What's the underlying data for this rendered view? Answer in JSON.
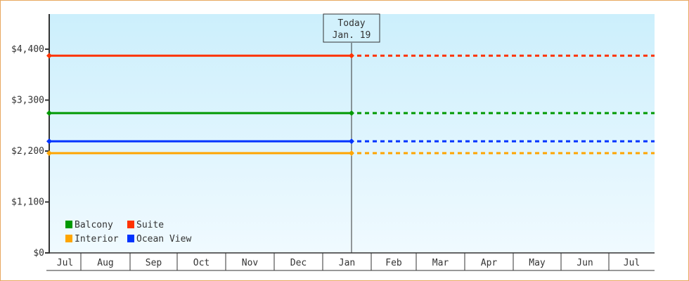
{
  "chart_data": {
    "type": "line",
    "title": "",
    "xlabel": "",
    "ylabel": "",
    "ylim": [
      0,
      4400
    ],
    "y_ticks": [
      "$0",
      "$1,100",
      "$2,200",
      "$3,300",
      "$4,400"
    ],
    "y_tick_values": [
      0,
      1100,
      2200,
      3300,
      4400
    ],
    "x_ticks": [
      "Jul",
      "Aug",
      "Sep",
      "Oct",
      "Nov",
      "Dec",
      "Jan",
      "Feb",
      "Mar",
      "Apr",
      "May",
      "Jun",
      "Jul"
    ],
    "today_marker": {
      "line1": "Today",
      "line2": "Jan. 19"
    },
    "x": [
      "Jul",
      "Jan. 19"
    ],
    "projection": "dashed from Today to end of axis",
    "series": [
      {
        "name": "Suite",
        "color": "#ff3300",
        "values": [
          4260,
          4260
        ]
      },
      {
        "name": "Balcony",
        "color": "#009900",
        "values": [
          3020,
          3020
        ]
      },
      {
        "name": "Ocean View",
        "color": "#0033ff",
        "values": [
          2410,
          2410
        ]
      },
      {
        "name": "Interior",
        "color": "#ffa500",
        "values": [
          2155,
          2155
        ]
      }
    ],
    "legend": {
      "placement": "bottom-left",
      "order": [
        "Balcony",
        "Suite",
        "Interior",
        "Ocean View"
      ]
    },
    "grid": false,
    "background": [
      "#cceffc",
      "#f0faff"
    ]
  }
}
